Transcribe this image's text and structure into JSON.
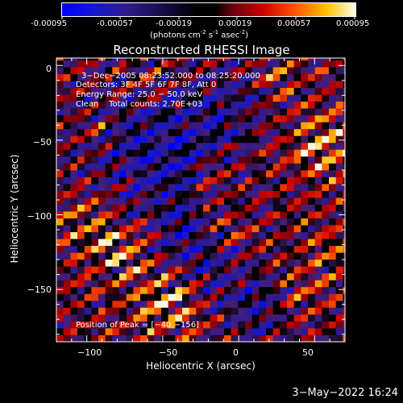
{
  "colorbar": {
    "ticks": [
      "-0.00095",
      "-0.00057",
      "-0.00019",
      "0.00019",
      "0.00057",
      "0.00095"
    ],
    "units_text": "(photons cm",
    "units_exp1": "-2",
    "units_mid": " s",
    "units_exp2": "-1",
    "units_mid2": " asec",
    "units_exp3": "-2",
    "units_end": ")"
  },
  "chart_data": {
    "type": "heatmap",
    "title": "Reconstructed RHESSI Image",
    "xlabel": "Heliocentric X (arcsec)",
    "ylabel": "Heliocentric Y (arcsec)",
    "xlim": [
      -120,
      70
    ],
    "ylim": [
      -185,
      5
    ],
    "xticks": [
      -100,
      -50,
      0,
      50
    ],
    "yticks": [
      0,
      -50,
      -100,
      -150
    ],
    "xtick_labels": [
      "−100",
      "−50",
      "0",
      "50"
    ],
    "ytick_labels": [
      "0",
      "−50",
      "−100",
      "−150"
    ],
    "clim": [
      -0.00095,
      0.00095
    ],
    "annotations": [
      "3−Dec−2005 08:23:52.000 to 08:25:20.000",
      "Detectors: 3F 4F 5F 6F 7F 8F, Att 0",
      "Energy Range: 25.0 − 50.0 keV",
      "Clean    Total counts: 2.70E+03"
    ],
    "peak_label": "Position of Peak = [−40,−156]",
    "peak": [
      -40,
      -156
    ]
  },
  "footer": {
    "timestamp": "3−May−2022 16:24"
  }
}
